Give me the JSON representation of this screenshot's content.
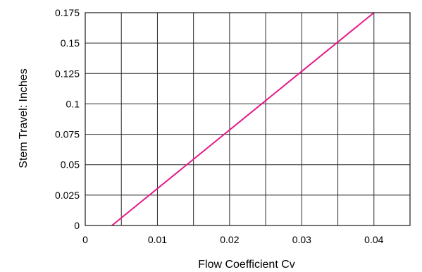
{
  "chart_data": {
    "type": "line",
    "title": "",
    "xlabel": "Flow Coefficient Cv",
    "ylabel": "Stem Travel: Inches",
    "xlim": [
      0,
      0.045
    ],
    "ylim": [
      0,
      0.175
    ],
    "x_ticks": [
      0,
      0.01,
      0.02,
      0.03,
      0.04
    ],
    "x_tick_labels": [
      "0",
      "0.01",
      "0.02",
      "0.03",
      "0.04"
    ],
    "y_ticks": [
      0,
      0.025,
      0.05,
      0.075,
      0.1,
      0.125,
      0.15,
      0.175
    ],
    "y_tick_labels": [
      "0",
      "0.025",
      "0.05",
      "0.075",
      "0.1",
      "0.125",
      "0.15",
      "0.175"
    ],
    "grid": true,
    "series": [
      {
        "color": "#e6198a",
        "x": [
          0.0037,
          0.04
        ],
        "y": [
          0,
          0.175
        ]
      }
    ]
  }
}
